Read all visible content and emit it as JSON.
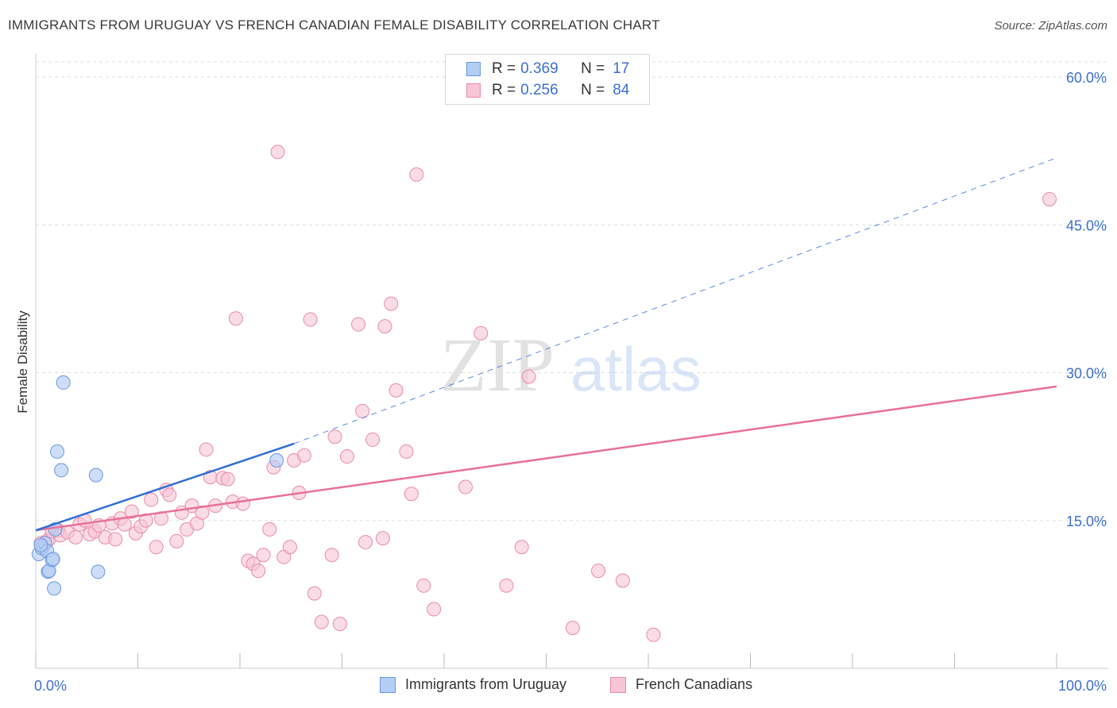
{
  "title": "IMMIGRANTS FROM URUGUAY VS FRENCH CANADIAN FEMALE DISABILITY CORRELATION CHART",
  "source": "Source: ZipAtlas.com",
  "watermark": {
    "zip": "ZIP",
    "atlas": "atlas"
  },
  "colors": {
    "blue_fill": "#b3cdf5",
    "blue_stroke": "#6a98e0",
    "blue_line": "#2f6fd6",
    "pink_fill": "#f7c5d6",
    "pink_stroke": "#e98aab",
    "pink_line": "#e8709a",
    "tick_label": "#3b6fd0",
    "grid": "#dddddd"
  },
  "legend_top": [
    {
      "r_label": "R =",
      "r_value": "0.369",
      "n_label": "N =",
      "n_value": "17"
    },
    {
      "r_label": "R =",
      "r_value": "0.256",
      "n_label": "N =",
      "n_value": "84"
    }
  ],
  "chart_data": {
    "type": "scatter",
    "title": "IMMIGRANTS FROM URUGUAY VS FRENCH CANADIAN FEMALE DISABILITY CORRELATION CHART",
    "xlabel": "",
    "ylabel": "Female Disability",
    "xlim": [
      0,
      100
    ],
    "ylim": [
      0,
      60.8
    ],
    "x_tick_labels": [
      "0.0%",
      "100.0%"
    ],
    "y_ticks": [
      15,
      30,
      45,
      60
    ],
    "y_tick_labels": [
      "15.0%",
      "30.0%",
      "45.0%",
      "60.0%"
    ],
    "legend_position": "bottom",
    "series": [
      {
        "name": "Immigrants from Uruguay",
        "color": "blue",
        "points": [
          [
            0.3,
            11.6
          ],
          [
            0.6,
            12.2
          ],
          [
            0.9,
            12.7
          ],
          [
            1.1,
            11.9
          ],
          [
            1.2,
            9.8
          ],
          [
            1.3,
            9.9
          ],
          [
            1.6,
            11.0
          ],
          [
            1.7,
            11.1
          ],
          [
            1.8,
            8.1
          ],
          [
            1.9,
            14.1
          ],
          [
            2.1,
            22.0
          ],
          [
            2.5,
            20.1
          ],
          [
            2.7,
            29.0
          ],
          [
            5.9,
            19.6
          ],
          [
            6.1,
            9.8
          ],
          [
            23.6,
            21.1
          ],
          [
            0.5,
            12.5
          ]
        ],
        "trend_solid": [
          [
            0.0,
            14.0
          ],
          [
            25.3,
            22.8
          ]
        ],
        "trend_dashed": [
          [
            25.3,
            22.8
          ],
          [
            100.0,
            51.8
          ]
        ]
      },
      {
        "name": "French Canadians",
        "color": "pink",
        "points": [
          [
            0.5,
            12.7
          ],
          [
            0.7,
            12.3
          ],
          [
            1.1,
            12.9
          ],
          [
            1.3,
            13.1
          ],
          [
            1.6,
            13.9
          ],
          [
            2.2,
            14.0
          ],
          [
            2.4,
            13.5
          ],
          [
            3.1,
            13.8
          ],
          [
            3.9,
            13.3
          ],
          [
            4.3,
            14.6
          ],
          [
            4.8,
            15.0
          ],
          [
            5.3,
            13.6
          ],
          [
            5.8,
            13.9
          ],
          [
            6.2,
            14.5
          ],
          [
            6.8,
            13.3
          ],
          [
            7.5,
            14.7
          ],
          [
            7.8,
            13.1
          ],
          [
            8.3,
            15.2
          ],
          [
            8.7,
            14.6
          ],
          [
            9.4,
            15.9
          ],
          [
            9.8,
            13.7
          ],
          [
            10.3,
            14.4
          ],
          [
            10.8,
            15.0
          ],
          [
            11.3,
            17.1
          ],
          [
            11.8,
            12.3
          ],
          [
            12.3,
            15.2
          ],
          [
            12.8,
            18.1
          ],
          [
            13.1,
            17.6
          ],
          [
            13.8,
            12.9
          ],
          [
            14.3,
            15.8
          ],
          [
            14.8,
            14.1
          ],
          [
            15.3,
            16.5
          ],
          [
            15.8,
            14.7
          ],
          [
            16.3,
            15.8
          ],
          [
            16.7,
            22.2
          ],
          [
            17.1,
            19.4
          ],
          [
            17.6,
            16.5
          ],
          [
            18.3,
            19.3
          ],
          [
            18.8,
            19.2
          ],
          [
            19.3,
            16.9
          ],
          [
            19.6,
            35.5
          ],
          [
            20.3,
            16.7
          ],
          [
            20.8,
            10.9
          ],
          [
            21.3,
            10.6
          ],
          [
            21.8,
            9.9
          ],
          [
            22.3,
            11.5
          ],
          [
            22.9,
            14.1
          ],
          [
            23.3,
            20.4
          ],
          [
            23.7,
            52.4
          ],
          [
            24.3,
            11.3
          ],
          [
            24.9,
            12.3
          ],
          [
            25.3,
            21.1
          ],
          [
            25.8,
            17.8
          ],
          [
            26.3,
            21.6
          ],
          [
            26.9,
            35.4
          ],
          [
            27.3,
            7.6
          ],
          [
            28.0,
            4.7
          ],
          [
            29.0,
            11.5
          ],
          [
            29.3,
            23.5
          ],
          [
            29.8,
            4.5
          ],
          [
            30.5,
            21.5
          ],
          [
            31.6,
            34.9
          ],
          [
            32.0,
            26.1
          ],
          [
            32.3,
            12.8
          ],
          [
            33.0,
            23.2
          ],
          [
            34.0,
            13.2
          ],
          [
            34.2,
            34.7
          ],
          [
            34.8,
            37.0
          ],
          [
            35.3,
            28.2
          ],
          [
            36.3,
            22.0
          ],
          [
            36.8,
            17.7
          ],
          [
            37.3,
            50.1
          ],
          [
            38.0,
            8.4
          ],
          [
            39.0,
            6.0
          ],
          [
            42.1,
            18.4
          ],
          [
            43.6,
            34.0
          ],
          [
            46.1,
            8.4
          ],
          [
            47.6,
            12.3
          ],
          [
            48.3,
            29.6
          ],
          [
            52.6,
            4.1
          ],
          [
            55.1,
            9.9
          ],
          [
            57.5,
            8.9
          ],
          [
            60.5,
            3.4
          ],
          [
            99.3,
            47.6
          ]
        ],
        "trend_solid": [
          [
            0.0,
            14.0
          ],
          [
            100.0,
            28.6
          ]
        ]
      }
    ]
  }
}
